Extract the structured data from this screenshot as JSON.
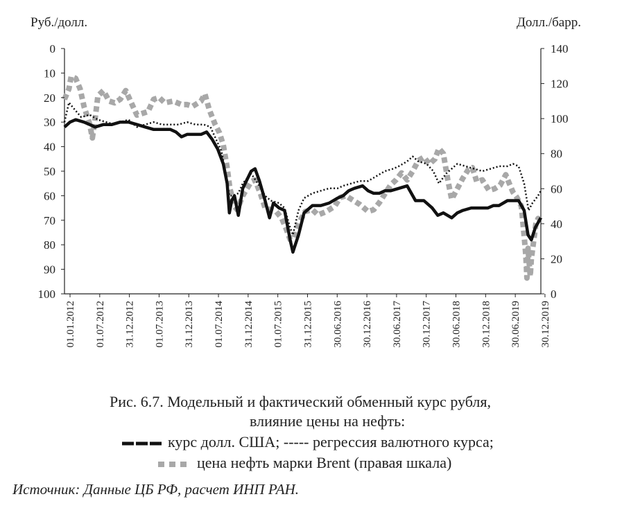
{
  "chart_data": {
    "type": "line",
    "left_axis_title": "Руб./долл.",
    "right_axis_title": "Долл./барр.",
    "left_axis": {
      "min": 0,
      "max": 100,
      "inverted": true,
      "ticks": [
        0,
        10,
        20,
        30,
        40,
        50,
        60,
        70,
        80,
        90,
        100
      ]
    },
    "right_axis": {
      "min": 0,
      "max": 140,
      "ticks": [
        0,
        20,
        40,
        60,
        80,
        100,
        120,
        140
      ]
    },
    "x_tick_labels": [
      "01.01.2012",
      "01.07.2012",
      "31.12.2012",
      "01.07.2013",
      "31.12.2013",
      "01.07.2014",
      "31.12.2014",
      "01.07.2015",
      "31.12.2015",
      "30.06.2016",
      "30.12.2016",
      "30.06.2017",
      "30.12.2017",
      "30.06.2018",
      "30.12.2018",
      "30.06.2019",
      "30.12.2019"
    ],
    "x_range": [
      2012.0,
      2020.55
    ],
    "grid": false,
    "series": [
      {
        "name": "курс долл. США",
        "axis": "left",
        "style": "solid",
        "color": "#111111",
        "points": [
          [
            2012.0,
            32
          ],
          [
            2012.1,
            30
          ],
          [
            2012.2,
            29
          ],
          [
            2012.35,
            30
          ],
          [
            2012.45,
            31
          ],
          [
            2012.55,
            32
          ],
          [
            2012.7,
            31
          ],
          [
            2012.85,
            31
          ],
          [
            2013.0,
            30
          ],
          [
            2013.15,
            30
          ],
          [
            2013.3,
            31
          ],
          [
            2013.45,
            32
          ],
          [
            2013.6,
            33
          ],
          [
            2013.75,
            33
          ],
          [
            2013.9,
            33
          ],
          [
            2014.0,
            34
          ],
          [
            2014.1,
            36
          ],
          [
            2014.2,
            35
          ],
          [
            2014.3,
            35
          ],
          [
            2014.45,
            35
          ],
          [
            2014.55,
            34
          ],
          [
            2014.65,
            37
          ],
          [
            2014.75,
            41
          ],
          [
            2014.85,
            47
          ],
          [
            2014.92,
            55
          ],
          [
            2014.96,
            67
          ],
          [
            2015.0,
            62
          ],
          [
            2015.05,
            60
          ],
          [
            2015.12,
            68
          ],
          [
            2015.2,
            57
          ],
          [
            2015.35,
            50
          ],
          [
            2015.42,
            49
          ],
          [
            2015.5,
            54
          ],
          [
            2015.6,
            62
          ],
          [
            2015.68,
            69
          ],
          [
            2015.75,
            63
          ],
          [
            2015.85,
            65
          ],
          [
            2015.95,
            66
          ],
          [
            2016.05,
            78
          ],
          [
            2016.1,
            83
          ],
          [
            2016.2,
            76
          ],
          [
            2016.3,
            67
          ],
          [
            2016.45,
            64
          ],
          [
            2016.6,
            64
          ],
          [
            2016.75,
            63
          ],
          [
            2016.9,
            61
          ],
          [
            2017.0,
            60
          ],
          [
            2017.1,
            58
          ],
          [
            2017.2,
            57
          ],
          [
            2017.35,
            56
          ],
          [
            2017.45,
            58
          ],
          [
            2017.55,
            59
          ],
          [
            2017.65,
            59
          ],
          [
            2017.75,
            58
          ],
          [
            2017.85,
            58
          ],
          [
            2018.0,
            57
          ],
          [
            2018.15,
            56
          ],
          [
            2018.3,
            62
          ],
          [
            2018.45,
            62
          ],
          [
            2018.6,
            65
          ],
          [
            2018.7,
            68
          ],
          [
            2018.8,
            67
          ],
          [
            2018.95,
            69
          ],
          [
            2019.05,
            67
          ],
          [
            2019.15,
            66
          ],
          [
            2019.3,
            65
          ],
          [
            2019.45,
            65
          ],
          [
            2019.6,
            65
          ],
          [
            2019.7,
            64
          ],
          [
            2019.8,
            64
          ],
          [
            2019.95,
            62
          ],
          [
            2020.05,
            62
          ],
          [
            2020.15,
            62
          ],
          [
            2020.25,
            66
          ],
          [
            2020.32,
            76
          ],
          [
            2020.38,
            78
          ],
          [
            2020.45,
            73
          ],
          [
            2020.5,
            71
          ],
          [
            2020.55,
            69
          ]
        ]
      },
      {
        "name": "регрессия валютного курса",
        "axis": "left",
        "style": "dotted",
        "color": "#111111",
        "points": [
          [
            2012.0,
            30
          ],
          [
            2012.08,
            22
          ],
          [
            2012.15,
            24
          ],
          [
            2012.3,
            28
          ],
          [
            2012.45,
            27
          ],
          [
            2012.6,
            29
          ],
          [
            2012.75,
            30
          ],
          [
            2012.9,
            31
          ],
          [
            2013.0,
            30
          ],
          [
            2013.15,
            29
          ],
          [
            2013.3,
            32
          ],
          [
            2013.45,
            31
          ],
          [
            2013.6,
            30
          ],
          [
            2013.75,
            31
          ],
          [
            2013.9,
            31
          ],
          [
            2014.05,
            31
          ],
          [
            2014.2,
            30
          ],
          [
            2014.35,
            31
          ],
          [
            2014.5,
            31
          ],
          [
            2014.62,
            32
          ],
          [
            2014.72,
            37
          ],
          [
            2014.82,
            42
          ],
          [
            2014.9,
            52
          ],
          [
            2014.96,
            60
          ],
          [
            2015.02,
            60
          ],
          [
            2015.12,
            59
          ],
          [
            2015.2,
            55
          ],
          [
            2015.35,
            51
          ],
          [
            2015.5,
            56
          ],
          [
            2015.6,
            60
          ],
          [
            2015.7,
            62
          ],
          [
            2015.85,
            63
          ],
          [
            2015.95,
            65
          ],
          [
            2016.05,
            73
          ],
          [
            2016.1,
            76
          ],
          [
            2016.2,
            66
          ],
          [
            2016.3,
            61
          ],
          [
            2016.45,
            59
          ],
          [
            2016.6,
            58
          ],
          [
            2016.75,
            57
          ],
          [
            2016.9,
            57
          ],
          [
            2017.0,
            56
          ],
          [
            2017.15,
            55
          ],
          [
            2017.3,
            54
          ],
          [
            2017.45,
            54
          ],
          [
            2017.6,
            52
          ],
          [
            2017.75,
            50
          ],
          [
            2017.9,
            49
          ],
          [
            2018.0,
            48
          ],
          [
            2018.15,
            46
          ],
          [
            2018.25,
            44
          ],
          [
            2018.35,
            46
          ],
          [
            2018.5,
            47
          ],
          [
            2018.62,
            50
          ],
          [
            2018.72,
            55
          ],
          [
            2018.85,
            51
          ],
          [
            2018.95,
            49
          ],
          [
            2019.05,
            47
          ],
          [
            2019.2,
            48
          ],
          [
            2019.35,
            49
          ],
          [
            2019.5,
            50
          ],
          [
            2019.65,
            49
          ],
          [
            2019.8,
            48
          ],
          [
            2019.95,
            48
          ],
          [
            2020.05,
            47
          ],
          [
            2020.15,
            48
          ],
          [
            2020.25,
            55
          ],
          [
            2020.33,
            66
          ],
          [
            2020.4,
            63
          ],
          [
            2020.5,
            60
          ],
          [
            2020.55,
            58
          ]
        ]
      },
      {
        "name": "цена нефть марки Brent",
        "axis": "right",
        "style": "dashed-thick",
        "color": "#a8a8a8",
        "points": [
          [
            2012.0,
            111
          ],
          [
            2012.08,
            117
          ],
          [
            2012.12,
            124
          ],
          [
            2012.2,
            123
          ],
          [
            2012.28,
            117
          ],
          [
            2012.35,
            107
          ],
          [
            2012.45,
            97
          ],
          [
            2012.5,
            89
          ],
          [
            2012.55,
            100
          ],
          [
            2012.6,
            113
          ],
          [
            2012.7,
            116
          ],
          [
            2012.8,
            110
          ],
          [
            2012.9,
            109
          ],
          [
            2013.0,
            111
          ],
          [
            2013.1,
            116
          ],
          [
            2013.2,
            109
          ],
          [
            2013.3,
            102
          ],
          [
            2013.4,
            103
          ],
          [
            2013.5,
            104
          ],
          [
            2013.6,
            111
          ],
          [
            2013.7,
            112
          ],
          [
            2013.8,
            109
          ],
          [
            2013.95,
            110
          ],
          [
            2014.1,
            108
          ],
          [
            2014.2,
            108
          ],
          [
            2014.3,
            107
          ],
          [
            2014.45,
            110
          ],
          [
            2014.52,
            114
          ],
          [
            2014.6,
            105
          ],
          [
            2014.7,
            97
          ],
          [
            2014.78,
            92
          ],
          [
            2014.85,
            85
          ],
          [
            2014.92,
            72
          ],
          [
            2014.97,
            60
          ],
          [
            2015.05,
            50
          ],
          [
            2015.1,
            48
          ],
          [
            2015.2,
            56
          ],
          [
            2015.35,
            64
          ],
          [
            2015.42,
            65
          ],
          [
            2015.52,
            57
          ],
          [
            2015.6,
            49
          ],
          [
            2015.7,
            48
          ],
          [
            2015.8,
            47
          ],
          [
            2015.9,
            43
          ],
          [
            2015.98,
            37
          ],
          [
            2016.05,
            31
          ],
          [
            2016.12,
            32
          ],
          [
            2016.2,
            40
          ],
          [
            2016.32,
            47
          ],
          [
            2016.45,
            48
          ],
          [
            2016.55,
            45
          ],
          [
            2016.7,
            47
          ],
          [
            2016.85,
            50
          ],
          [
            2016.95,
            55
          ],
          [
            2017.05,
            56
          ],
          [
            2017.15,
            54
          ],
          [
            2017.3,
            51
          ],
          [
            2017.45,
            47
          ],
          [
            2017.55,
            48
          ],
          [
            2017.65,
            52
          ],
          [
            2017.75,
            57
          ],
          [
            2017.85,
            62
          ],
          [
            2017.95,
            65
          ],
          [
            2018.05,
            69
          ],
          [
            2018.15,
            65
          ],
          [
            2018.25,
            70
          ],
          [
            2018.35,
            76
          ],
          [
            2018.45,
            78
          ],
          [
            2018.55,
            74
          ],
          [
            2018.65,
            77
          ],
          [
            2018.72,
            83
          ],
          [
            2018.8,
            80
          ],
          [
            2018.88,
            65
          ],
          [
            2018.95,
            54
          ],
          [
            2019.05,
            60
          ],
          [
            2019.15,
            66
          ],
          [
            2019.25,
            71
          ],
          [
            2019.32,
            72
          ],
          [
            2019.4,
            64
          ],
          [
            2019.5,
            65
          ],
          [
            2019.62,
            59
          ],
          [
            2019.72,
            60
          ],
          [
            2019.82,
            62
          ],
          [
            2019.92,
            68
          ],
          [
            2019.97,
            64
          ],
          [
            2020.05,
            58
          ],
          [
            2020.12,
            55
          ],
          [
            2020.2,
            50
          ],
          [
            2020.25,
            33
          ],
          [
            2020.28,
            22
          ],
          [
            2020.3,
            9
          ],
          [
            2020.32,
            26
          ],
          [
            2020.36,
            10
          ],
          [
            2020.38,
            20
          ],
          [
            2020.42,
            30
          ],
          [
            2020.46,
            40
          ],
          [
            2020.5,
            43
          ],
          [
            2020.55,
            42
          ]
        ]
      }
    ]
  },
  "caption": {
    "line1": "Рис. 6.7. Модельный и фактический обменный курс рубля,",
    "line2": "влияние цены на нефть:",
    "line3_a": "курс долл. США; ----- регрессия валютного курса;",
    "line4": "цена нефть марки Brent (правая шкала)"
  },
  "source": "Источник: Данные ЦБ РФ, расчет ИНП РАН."
}
